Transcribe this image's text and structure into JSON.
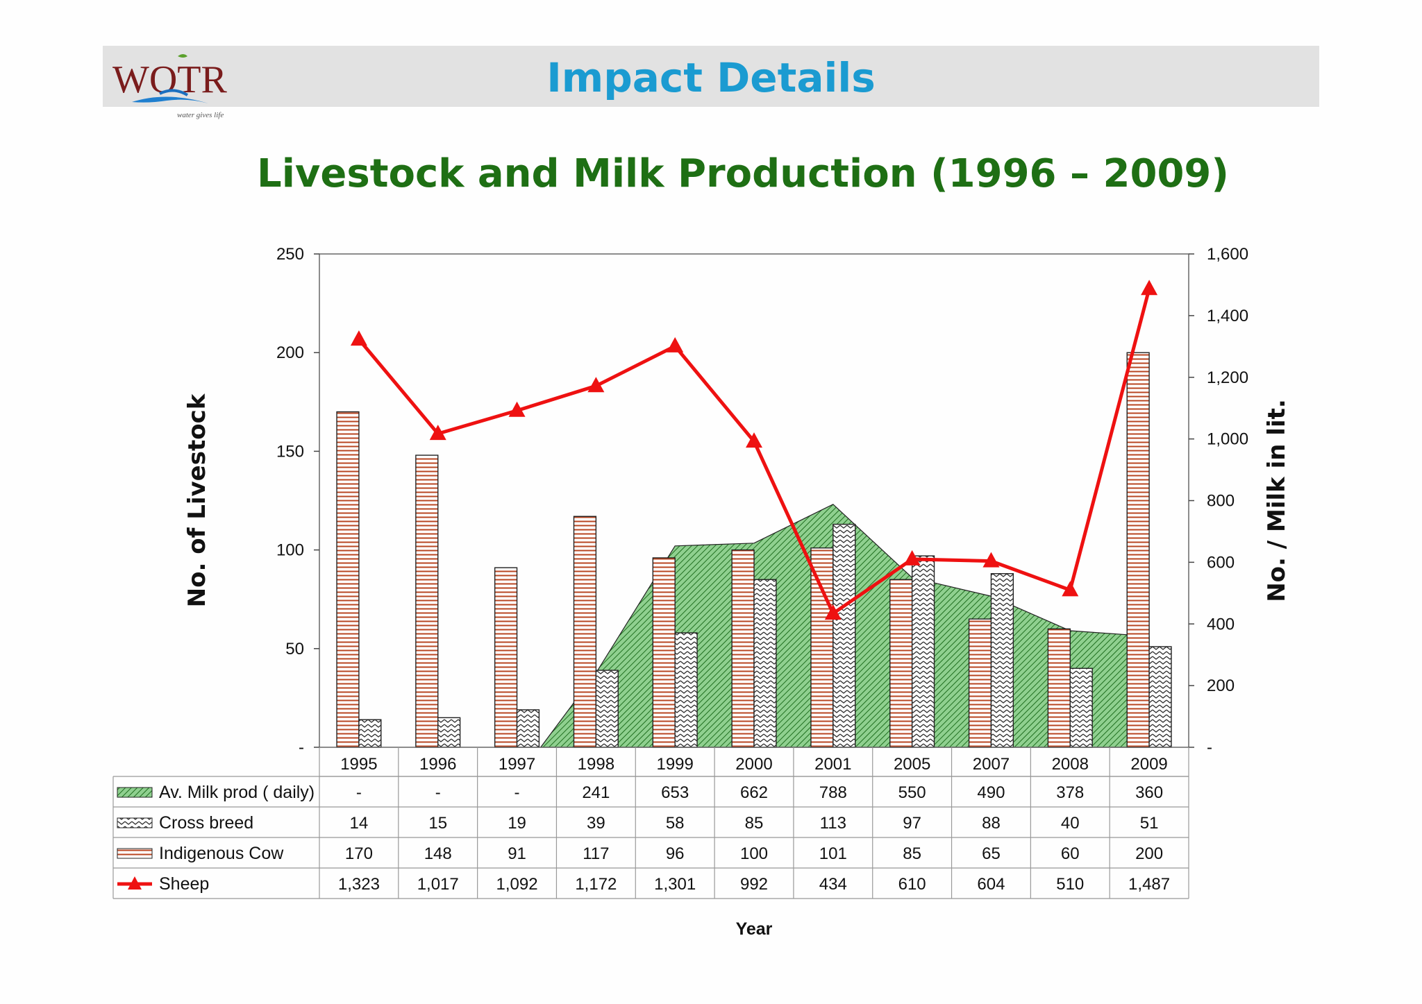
{
  "header": {
    "title": "Impact Details",
    "logo_text": "WOTR",
    "logo_tagline": "water gives life"
  },
  "chart_data": {
    "type": "bar",
    "title": "Livestock and Milk Production (1996 – 2009)",
    "xlabel": "Year",
    "ylabel": "No. of Livestock",
    "y2label": "No. / Milk in lit.",
    "ylim": [
      0,
      250
    ],
    "y2lim": [
      0,
      1600
    ],
    "y_ticks": [
      "-",
      "50",
      "100",
      "150",
      "200",
      "250"
    ],
    "y2_ticks": [
      "-",
      "200",
      "400",
      "600",
      "800",
      "1,000",
      "1,200",
      "1,400",
      "1,600"
    ],
    "categories": [
      "1995",
      "1996",
      "1997",
      "1998",
      "1999",
      "2000",
      "2001",
      "2005",
      "2007",
      "2008",
      "2009"
    ],
    "series": [
      {
        "name": "Av. Milk prod ( daily)",
        "kind": "area",
        "axis": "right",
        "color": "#44a244",
        "values": [
          null,
          null,
          null,
          241,
          653,
          662,
          788,
          550,
          490,
          378,
          360
        ],
        "labels": [
          "-",
          "-",
          "-",
          "241",
          "653",
          "662",
          "788",
          "550",
          "490",
          "378",
          "360"
        ]
      },
      {
        "name": "Cross breed",
        "kind": "bar",
        "axis": "left",
        "color": "#444444",
        "values": [
          14,
          15,
          19,
          39,
          58,
          85,
          113,
          97,
          88,
          40,
          51
        ],
        "labels": [
          "14",
          "15",
          "19",
          "39",
          "58",
          "85",
          "113",
          "97",
          "88",
          "40",
          "51"
        ]
      },
      {
        "name": "Indigenous Cow",
        "kind": "bar",
        "axis": "left",
        "color": "#c0502a",
        "values": [
          170,
          148,
          91,
          117,
          96,
          100,
          101,
          85,
          65,
          60,
          200
        ],
        "labels": [
          "170",
          "148",
          "91",
          "117",
          "96",
          "100",
          "101",
          "85",
          "65",
          "60",
          "200"
        ]
      },
      {
        "name": "Sheep",
        "kind": "line",
        "axis": "right",
        "color": "#ee1111",
        "values": [
          1323,
          1017,
          1092,
          1172,
          1301,
          992,
          434,
          610,
          604,
          510,
          1487
        ],
        "labels": [
          "1,323",
          "1,017",
          "1,092",
          "1,172",
          "1,301",
          "992",
          "434",
          "610",
          "604",
          "510",
          "1,487"
        ]
      }
    ],
    "grid": false,
    "legend": "data-table"
  }
}
